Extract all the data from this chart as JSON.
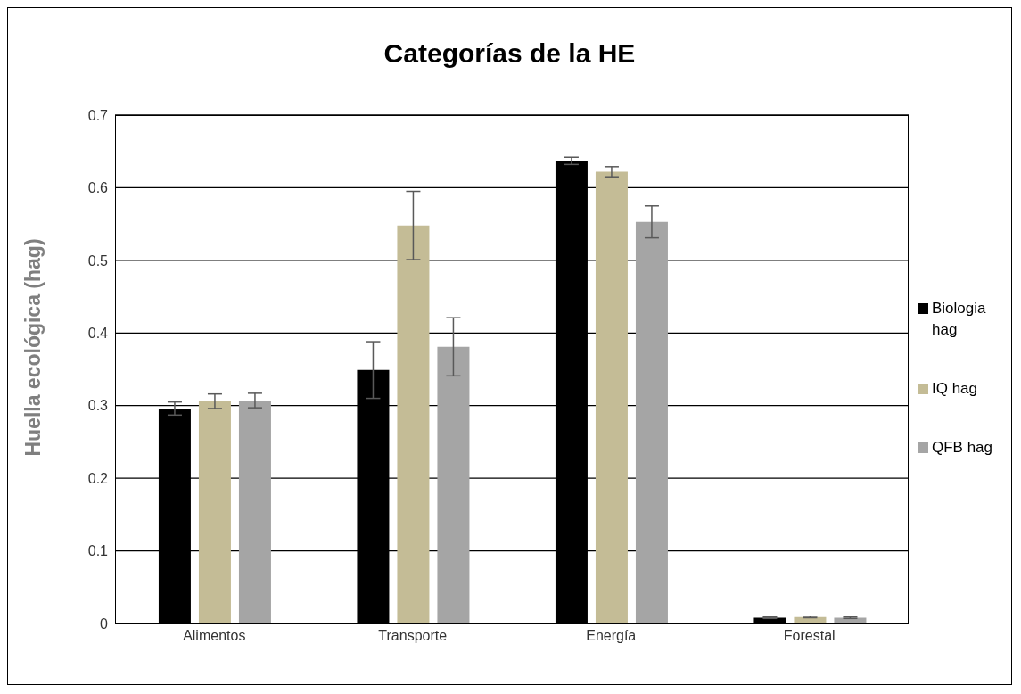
{
  "chart_data": {
    "type": "bar",
    "title": "Categorías de la HE",
    "ylabel": "Huella ecológica (hag)",
    "categories": [
      "Alimentos",
      "Transporte",
      "Energía",
      "Forestal"
    ],
    "series": [
      {
        "name": "Biologia hag",
        "color": "#000000",
        "values": [
          0.296,
          0.349,
          0.637,
          0.008
        ],
        "errors": [
          0.009,
          0.039,
          0.005,
          0.001
        ]
      },
      {
        "name": "IQ hag",
        "color": "#c4bc96",
        "values": [
          0.306,
          0.548,
          0.622,
          0.009
        ],
        "errors": [
          0.01,
          0.047,
          0.007,
          0.001
        ]
      },
      {
        "name": "QFB hag",
        "color": "#a5a5a5",
        "values": [
          0.307,
          0.381,
          0.553,
          0.008
        ],
        "errors": [
          0.01,
          0.04,
          0.022,
          0.001
        ]
      }
    ],
    "ylim": [
      0,
      0.7
    ],
    "yticks": [
      0,
      0.1,
      0.2,
      0.3,
      0.4,
      0.5,
      0.6,
      0.7
    ],
    "grid": "y",
    "legend": "right"
  }
}
